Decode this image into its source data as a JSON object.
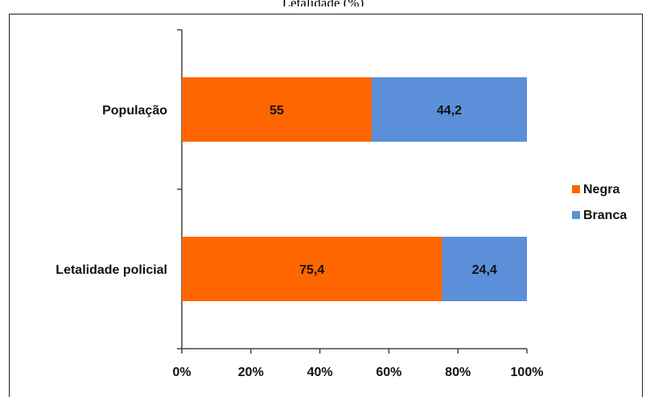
{
  "chart_data": {
    "type": "bar",
    "orientation": "horizontal",
    "stacked": true,
    "title": "",
    "categories": [
      "População",
      "Letalidade policial"
    ],
    "series": [
      {
        "name": "Negra",
        "values": [
          55,
          75.4
        ],
        "labels": [
          "55",
          "75,4"
        ],
        "color": "#ff6600"
      },
      {
        "name": "Branca",
        "values": [
          44.2,
          24.4
        ],
        "labels": [
          "44,2",
          "24,4"
        ],
        "color": "#5b8fd9"
      }
    ],
    "xlim": [
      0,
      100
    ],
    "xticks": [
      "0%",
      "20%",
      "40%",
      "60%",
      "80%",
      "100%"
    ],
    "grid": false,
    "legend": "right"
  }
}
